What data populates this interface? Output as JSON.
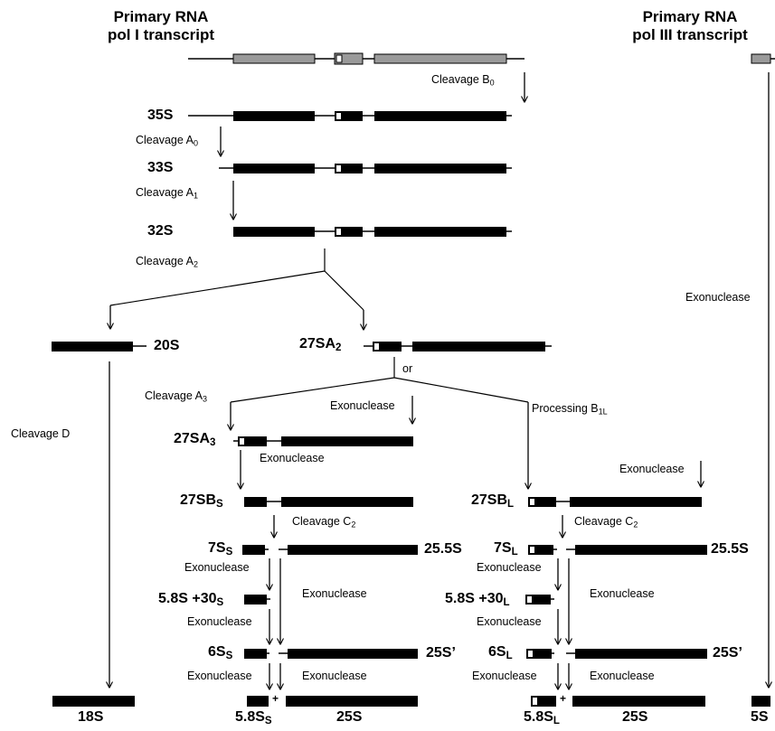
{
  "headers": {
    "pol1_line1": "Primary RNA",
    "pol1_line2": "pol I transcript",
    "pol3_line1": "Primary RNA",
    "pol3_line2": "pol III transcript"
  },
  "species": {
    "s35": "35S",
    "s33": "33S",
    "s32": "32S",
    "s20": "20S",
    "s27a2": {
      "main": "27SA",
      "sub": "2"
    },
    "s27a3": {
      "main": "27SA",
      "sub": "3"
    },
    "s27bs": {
      "main": "27SB",
      "sub": "S"
    },
    "s27bl": {
      "main": "27SB",
      "sub": "L"
    },
    "s7ss": {
      "main": "7S",
      "sub": "S"
    },
    "s7sl": {
      "main": "7S",
      "sub": "L"
    },
    "s255_left": "25.5S",
    "s255_right": "25.5S",
    "s58_30s": {
      "main": "5.8S +30",
      "sub": "S"
    },
    "s58_30l": {
      "main": "5.8S +30",
      "sub": "L"
    },
    "s6ss": {
      "main": "6S",
      "sub": "S"
    },
    "s6sl": {
      "main": "6S",
      "sub": "L"
    },
    "s25p_left": "25S’",
    "s25p_right": "25S’",
    "s18": "18S",
    "s58s": {
      "main": "5.8S",
      "sub": "S"
    },
    "s25_left": "25S",
    "s58l": {
      "main": "5.8S",
      "sub": "L"
    },
    "s25_right": "25S",
    "s5": "5S"
  },
  "steps": {
    "cleavage_b0": {
      "main": "Cleavage B",
      "sub": "0"
    },
    "cleavage_a0": {
      "main": "Cleavage A",
      "sub": "0"
    },
    "cleavage_a1": {
      "main": "Cleavage A",
      "sub": "1"
    },
    "cleavage_a2": {
      "main": "Cleavage A",
      "sub": "2"
    },
    "exonuclease_5s": "Exonuclease",
    "or": "or",
    "cleavage_d": "Cleavage D",
    "cleavage_a3": {
      "main": "Cleavage A",
      "sub": "3"
    },
    "exonuclease_mid": "Exonuclease",
    "processing_b1l": {
      "main": "Processing B",
      "sub": "1L"
    },
    "exonuclease_27a3": "Exonuclease",
    "exonuclease_right_top": "Exonuclease",
    "cleavage_c2_left": {
      "main": "Cleavage C",
      "sub": "2"
    },
    "cleavage_c2_right": {
      "main": "Cleavage C",
      "sub": "2"
    },
    "exo_l1": "Exonuclease",
    "exo_l2": "Exonuclease",
    "exo_l3": "Exonuclease",
    "exo_l4": "Exonuclease",
    "exo_l5": "Exonuclease",
    "exo_r1": "Exonuclease",
    "exo_r2": "Exonuclease",
    "exo_r3": "Exonuclease",
    "exo_r4": "Exonuclease",
    "exo_r5": "Exonuclease"
  },
  "plus": "+",
  "colors": {
    "mature_block": "#000000",
    "transcribed_block": "#9a9a9a",
    "line": "#000000"
  }
}
